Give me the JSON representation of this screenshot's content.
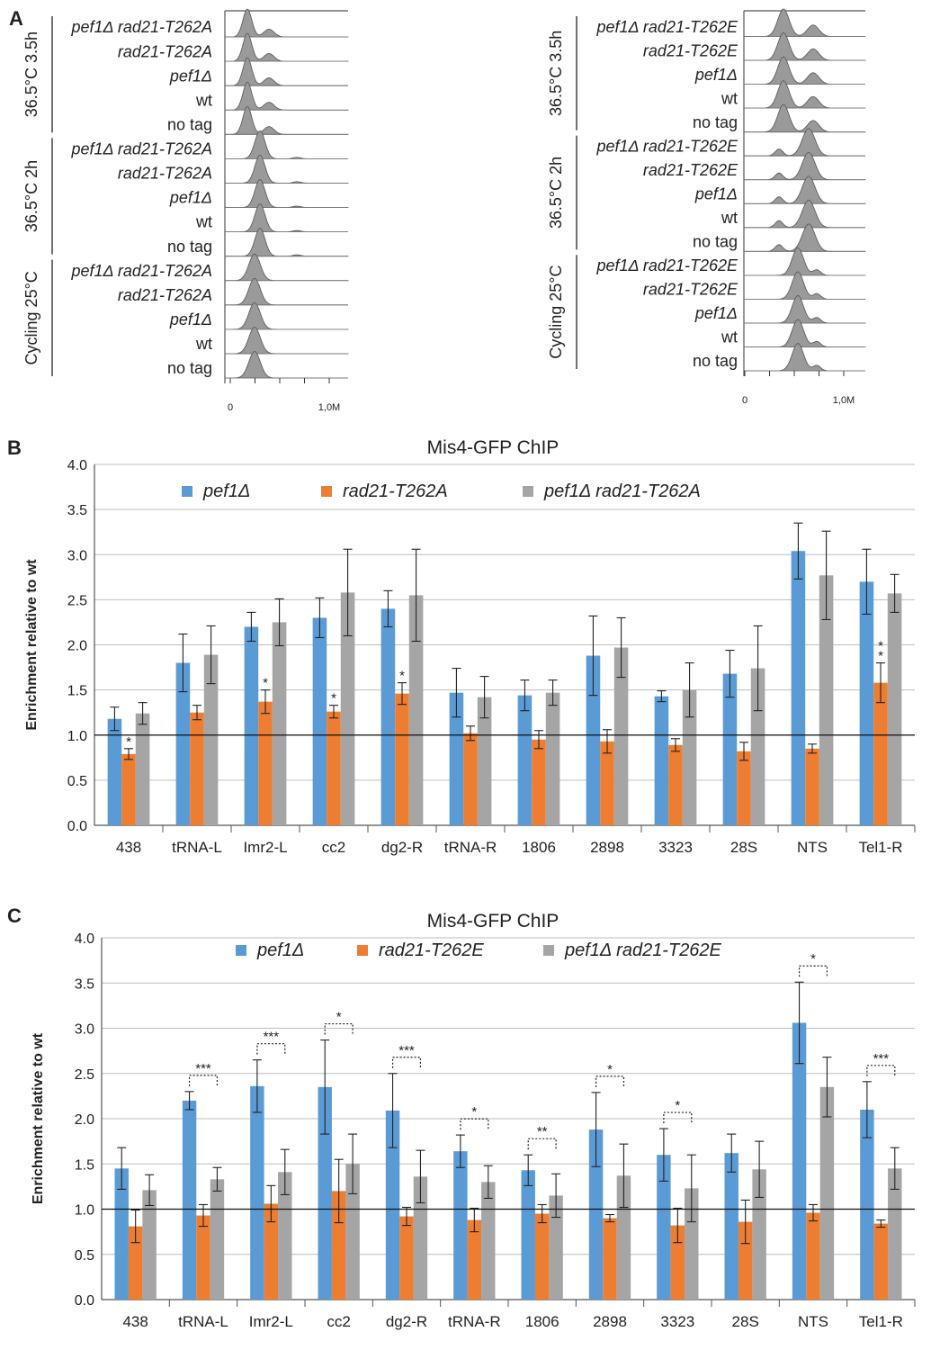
{
  "panels": {
    "A": {
      "letter": "A",
      "flow_left": {
        "groups": [
          {
            "label": "36.5°C 3.5h",
            "rows": [
              "pef1Δ rad21-T262A",
              "rad21-T262A",
              "pef1Δ",
              "wt",
              "no tag"
            ]
          },
          {
            "label": "36.5°C 2h",
            "rows": [
              "pef1Δ rad21-T262A",
              "rad21-T262A",
              "pef1Δ",
              "wt",
              "no tag"
            ]
          },
          {
            "label": "Cycling 25°C",
            "rows": [
              "pef1Δ rad21-T262A",
              "rad21-T262A",
              "pef1Δ",
              "wt",
              "no tag"
            ]
          }
        ],
        "xticks": [
          "0",
          "1,0M"
        ]
      },
      "flow_right": {
        "groups": [
          {
            "label": "36.5°C 3.5h",
            "rows": [
              "pef1Δ rad21-T262E",
              "rad21-T262E",
              "pef1Δ",
              "wt",
              "no tag"
            ]
          },
          {
            "label": "36.5°C 2h",
            "rows": [
              "pef1Δ rad21-T262E",
              "rad21-T262E",
              "pef1Δ",
              "wt",
              "no tag"
            ]
          },
          {
            "label": "Cycling 25°C",
            "rows": [
              "pef1Δ rad21-T262E",
              "rad21-T262E",
              "pef1Δ",
              "wt",
              "no tag"
            ]
          }
        ],
        "xticks": [
          "0",
          "1,0M"
        ]
      }
    },
    "B": {
      "letter": "B"
    },
    "C": {
      "letter": "C"
    }
  },
  "colors": {
    "blue": "#5B9BD5",
    "orange": "#ED7D31",
    "gray": "#A5A5A5",
    "flow_fill": "#9a9a9a"
  },
  "chart_data": [
    {
      "panel": "B",
      "type": "bar",
      "title": "Mis4-GFP ChIP",
      "ylabel": "Enrichment relative to wt",
      "xlabel": "",
      "ylim": [
        0,
        4
      ],
      "yticks": [
        "0.0",
        "0.5",
        "1.0",
        "1.5",
        "2.0",
        "2.5",
        "3.0",
        "3.5",
        "4.0"
      ],
      "reference_line": 1.0,
      "categories": [
        "438",
        "tRNA-L",
        "Imr2-L",
        "cc2",
        "dg2-R",
        "tRNA-R",
        "1806",
        "2898",
        "3323",
        "28S",
        "NTS",
        "Tel1-R"
      ],
      "series": [
        {
          "name": "pef1Δ",
          "color": "blue",
          "values": [
            1.18,
            1.8,
            2.2,
            2.3,
            2.4,
            1.47,
            1.44,
            1.88,
            1.43,
            1.68,
            3.04,
            2.7
          ],
          "errors": [
            0.13,
            0.32,
            0.16,
            0.22,
            0.2,
            0.27,
            0.17,
            0.44,
            0.06,
            0.26,
            0.31,
            0.36
          ]
        },
        {
          "name": "rad21-T262A",
          "color": "orange",
          "values": [
            0.79,
            1.25,
            1.37,
            1.26,
            1.46,
            1.02,
            0.95,
            0.93,
            0.89,
            0.82,
            0.85,
            1.58
          ],
          "errors": [
            0.06,
            0.08,
            0.13,
            0.07,
            0.12,
            0.08,
            0.1,
            0.13,
            0.07,
            0.1,
            0.05,
            0.22
          ]
        },
        {
          "name": "pef1Δ rad21-T262A",
          "color": "gray",
          "values": [
            1.24,
            1.89,
            2.25,
            2.58,
            2.55,
            1.42,
            1.47,
            1.97,
            1.5,
            1.74,
            2.77,
            2.57
          ],
          "errors": [
            0.12,
            0.32,
            0.26,
            0.48,
            0.51,
            0.23,
            0.14,
            0.33,
            0.3,
            0.47,
            0.49,
            0.21
          ]
        }
      ],
      "significance": [
        {
          "category": "438",
          "series": 1,
          "label": "*"
        },
        {
          "category": "Imr2-L",
          "series": 1,
          "label": "*"
        },
        {
          "category": "cc2",
          "series": 1,
          "label": "*"
        },
        {
          "category": "dg2-R",
          "series": 1,
          "label": "*"
        },
        {
          "category": "Tel1-R",
          "series": 1,
          "label": "**"
        }
      ],
      "legend": "top"
    },
    {
      "panel": "C",
      "type": "bar",
      "title": "Mis4-GFP ChIP",
      "ylabel": "Enrichment relative to wt",
      "xlabel": "",
      "ylim": [
        0,
        4
      ],
      "yticks": [
        "0.0",
        "0.5",
        "1.0",
        "1.5",
        "2.0",
        "2.5",
        "3.0",
        "3.5",
        "4.0"
      ],
      "reference_line": 1.0,
      "categories": [
        "438",
        "tRNA-L",
        "Imr2-L",
        "cc2",
        "dg2-R",
        "tRNA-R",
        "1806",
        "2898",
        "3323",
        "28S",
        "NTS",
        "Tel1-R"
      ],
      "series": [
        {
          "name": "pef1Δ",
          "color": "blue",
          "values": [
            1.45,
            2.2,
            2.36,
            2.35,
            2.09,
            1.64,
            1.43,
            1.88,
            1.6,
            1.62,
            3.06,
            2.1
          ],
          "errors": [
            0.23,
            0.1,
            0.29,
            0.52,
            0.41,
            0.18,
            0.17,
            0.41,
            0.29,
            0.21,
            0.45,
            0.31
          ]
        },
        {
          "name": "rad21-T262E",
          "color": "orange",
          "values": [
            0.81,
            0.93,
            1.06,
            1.2,
            0.92,
            0.88,
            0.95,
            0.9,
            0.82,
            0.86,
            0.96,
            0.84
          ]
        },
        {
          "name": "pef1Δ rad21-T262E",
          "color": "gray",
          "values": [
            1.21,
            1.33,
            1.41,
            1.5,
            1.36,
            1.3,
            1.15,
            1.37,
            1.23,
            1.44,
            2.35,
            1.45
          ],
          "errors": [
            0.17,
            0.13,
            0.25,
            0.33,
            0.29,
            0.18,
            0.24,
            0.35,
            0.37,
            0.31,
            0.33,
            0.23
          ]
        }
      ],
      "orange_errors": [
        0.18,
        0.12,
        0.2,
        0.35,
        0.1,
        0.13,
        0.1,
        0.04,
        0.19,
        0.24,
        0.09,
        0.04
      ],
      "significance": [
        {
          "category": "tRNA-L",
          "label": "***"
        },
        {
          "category": "Imr2-L",
          "label": "***"
        },
        {
          "category": "cc2",
          "label": "*"
        },
        {
          "category": "dg2-R",
          "label": "***"
        },
        {
          "category": "tRNA-R",
          "label": "*"
        },
        {
          "category": "1806",
          "label": "**"
        },
        {
          "category": "2898",
          "label": "*"
        },
        {
          "category": "3323",
          "label": "*"
        },
        {
          "category": "NTS",
          "label": "*"
        },
        {
          "category": "Tel1-R",
          "label": "***"
        }
      ],
      "legend": "top"
    }
  ]
}
